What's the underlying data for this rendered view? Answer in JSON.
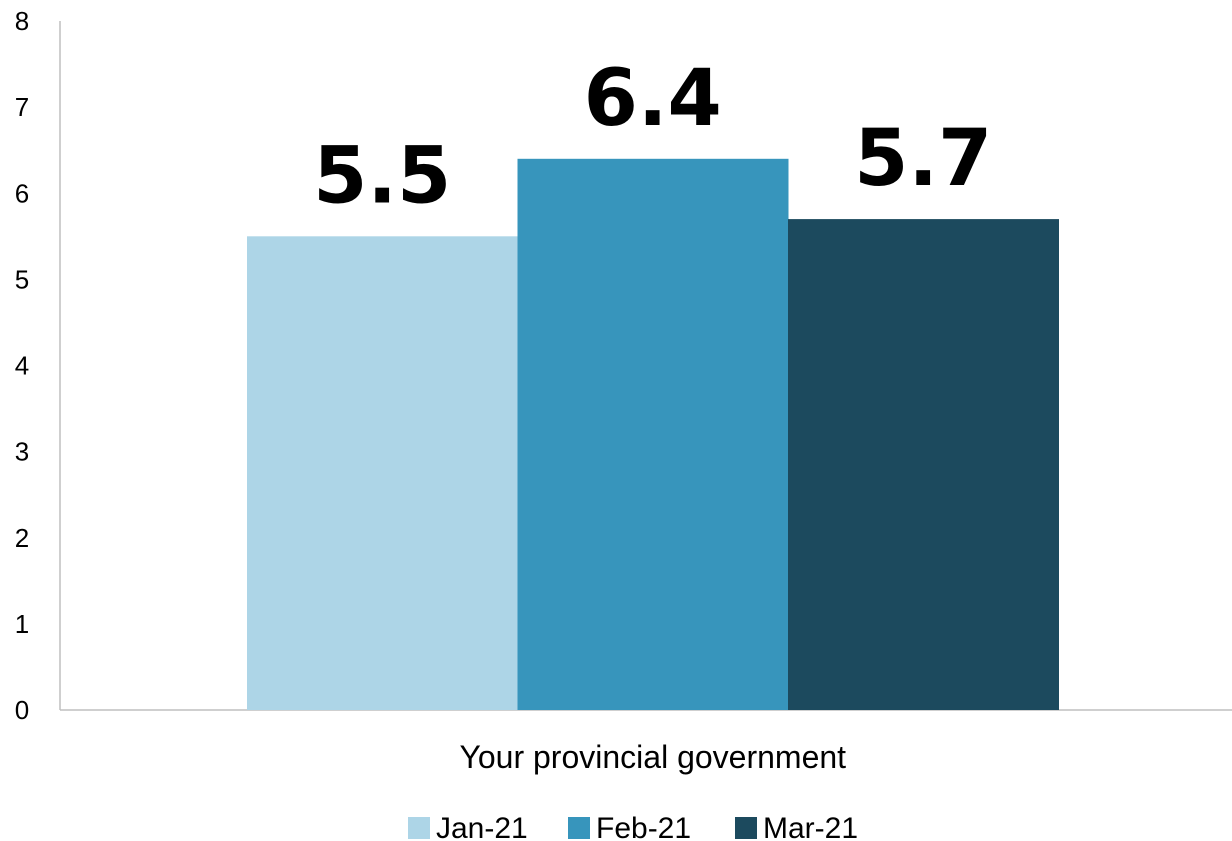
{
  "chart_data": {
    "type": "bar",
    "categories": [
      "Your provincial government"
    ],
    "series": [
      {
        "name": "Jan-21",
        "values": [
          5.5
        ],
        "color": "#add5e7"
      },
      {
        "name": "Feb-21",
        "values": [
          6.4
        ],
        "color": "#3795bc"
      },
      {
        "name": "Mar-21",
        "values": [
          5.7
        ],
        "color": "#1c4a5e"
      }
    ],
    "ylim": [
      0,
      8
    ],
    "yticks": [
      "0",
      "1",
      "2",
      "3",
      "4",
      "5",
      "6",
      "7",
      "8"
    ],
    "data_labels": [
      "5.5",
      "6.4",
      "5.7"
    ],
    "legend_position": "bottom",
    "grid": false
  }
}
